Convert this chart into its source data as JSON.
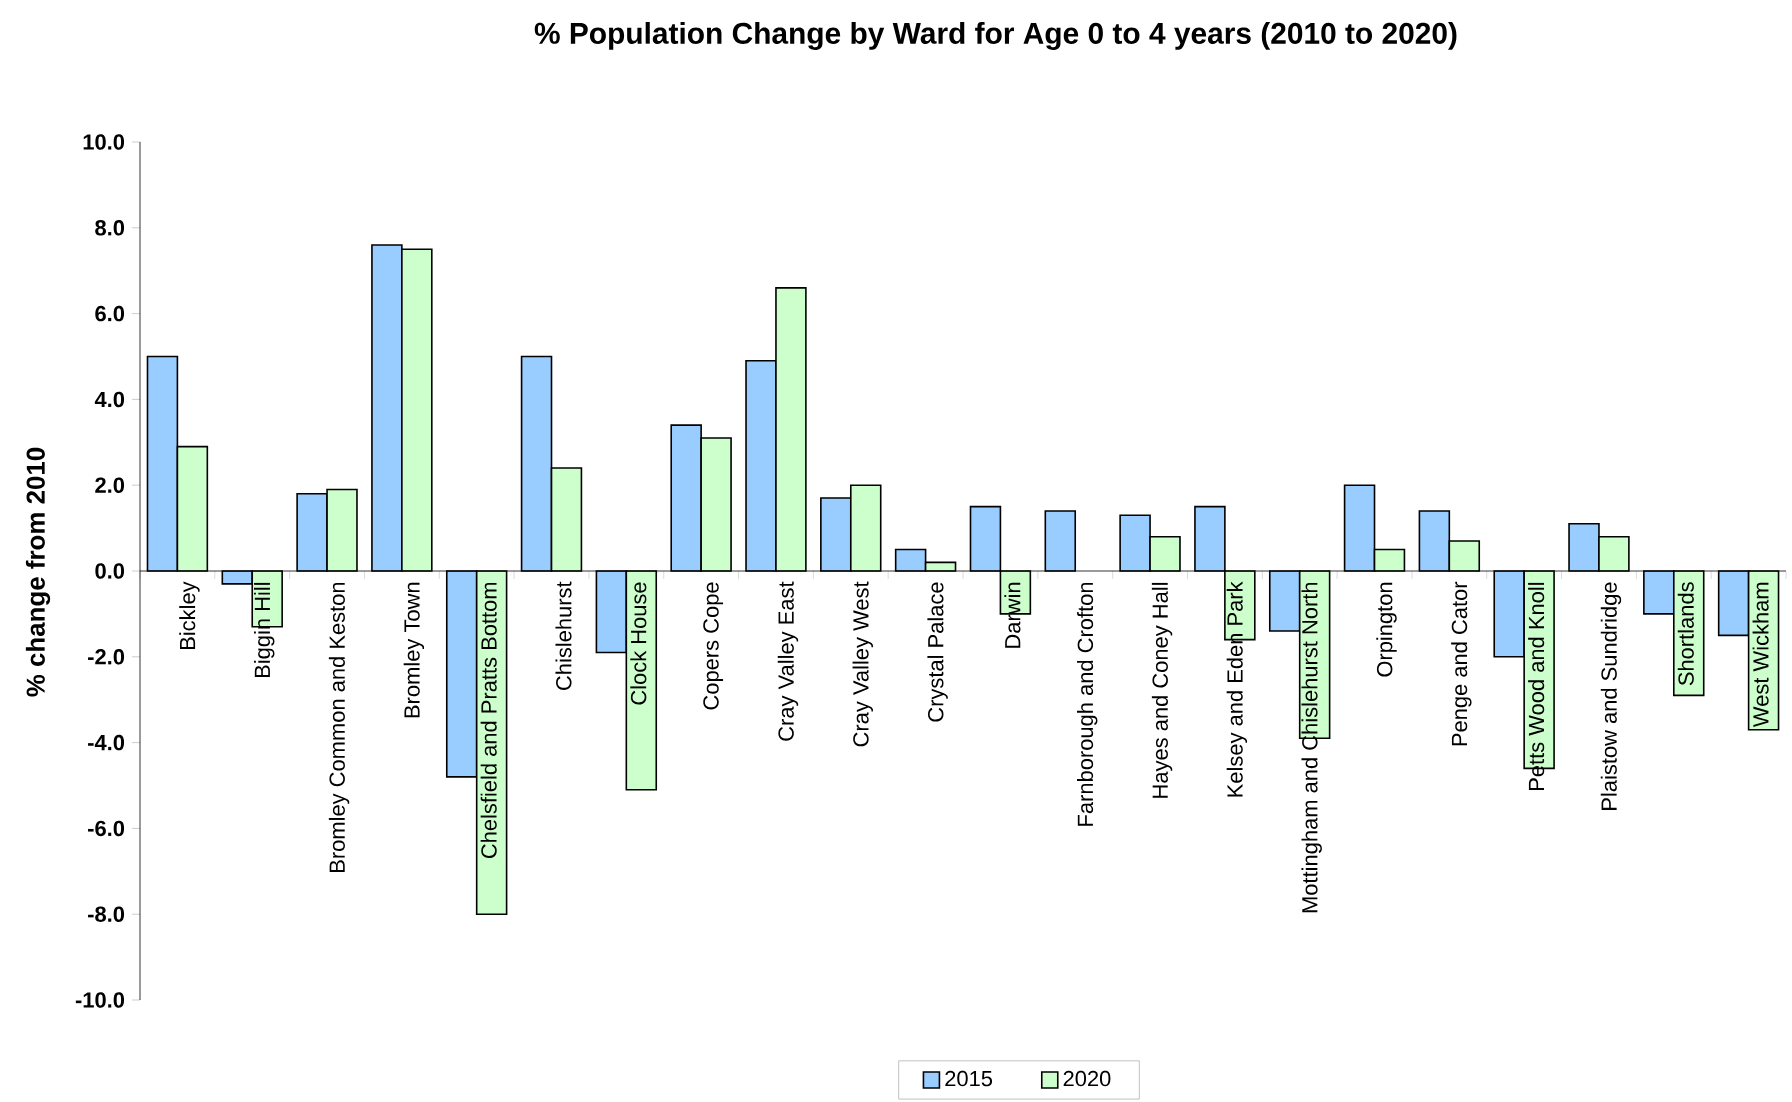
{
  "chart_data": {
    "type": "bar",
    "title": "% Population Change by Ward for Age 0 to 4 years (2010 to 2020)",
    "ylabel": "% change from 2010",
    "categories": [
      "Bickley",
      "Biggin Hill",
      "Bromley Common and Keston",
      "Bromley Town",
      "Chelsfield and Pratts Bottom",
      "Chislehurst",
      "Clock House",
      "Copers Cope",
      "Cray Valley East",
      "Cray Valley West",
      "Crystal Palace",
      "Darwin",
      "Farnborough and Crofton",
      "Hayes and Coney Hall",
      "Kelsey and Eden Park",
      "Mottingham and Chislehurst North",
      "Orpington",
      "Penge and Cator",
      "Petts Wood and Knoll",
      "Plaistow and Sundridge",
      "Shortlands",
      "West Wickham"
    ],
    "series": [
      {
        "name": "2015",
        "color": "#99ccff",
        "values": [
          5.0,
          -0.3,
          1.8,
          7.6,
          -4.8,
          5.0,
          -1.9,
          3.4,
          4.9,
          1.7,
          0.5,
          1.5,
          1.4,
          1.3,
          1.5,
          -1.4,
          2.0,
          1.4,
          -2.0,
          1.1,
          -1.0,
          -1.5
        ]
      },
      {
        "name": "2020",
        "color": "#ccffcc",
        "values": [
          2.9,
          -1.3,
          1.9,
          7.5,
          -8.0,
          2.4,
          -5.1,
          3.1,
          6.6,
          2.0,
          0.2,
          -1.0,
          null,
          0.8,
          -1.6,
          -3.9,
          0.5,
          0.7,
          -4.6,
          0.8,
          -2.9,
          -3.7
        ]
      }
    ],
    "ylim": [
      -10,
      10
    ],
    "yticks": [
      {
        "value": -10,
        "label": "-10.0"
      },
      {
        "value": -8,
        "label": "-8.0"
      },
      {
        "value": -6,
        "label": "-6.0"
      },
      {
        "value": -4,
        "label": "-4.0"
      },
      {
        "value": -2,
        "label": "-2.0"
      },
      {
        "value": 0,
        "label": "0.0"
      },
      {
        "value": 2,
        "label": "2.0"
      },
      {
        "value": 4,
        "label": "4.0"
      },
      {
        "value": 6,
        "label": "6.0"
      },
      {
        "value": 8,
        "label": "8.0"
      },
      {
        "value": 10,
        "label": "10.0"
      }
    ],
    "legend": "bottom"
  }
}
